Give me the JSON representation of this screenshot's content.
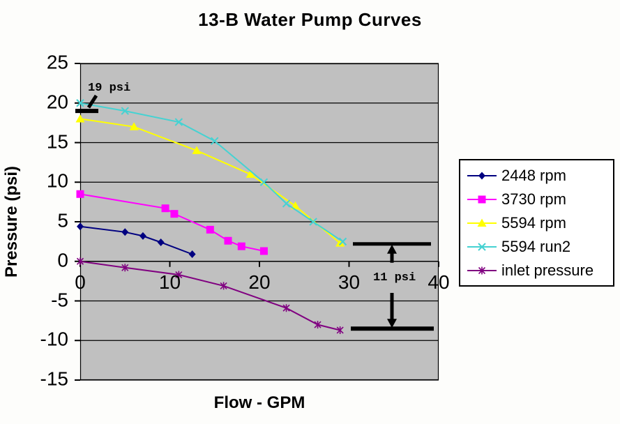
{
  "title": "13-B Water Pump Curves",
  "chart_data": {
    "type": "line",
    "title": "13-B Water Pump Curves",
    "xlabel": "Flow - GPM",
    "ylabel": "Pressure (psi)",
    "xlim": [
      0,
      40
    ],
    "ylim": [
      -15,
      25
    ],
    "x_ticks": [
      0,
      10,
      20,
      30,
      40
    ],
    "y_ticks": [
      25,
      20,
      15,
      10,
      5,
      0,
      -5,
      -10,
      -15
    ],
    "grid": "horizontal-black",
    "plot_background": "#C0C0C0",
    "legend_position": "right",
    "series": [
      {
        "name": "2448 rpm",
        "color": "#000080",
        "marker": "diamond",
        "points": [
          [
            0,
            4.4
          ],
          [
            5,
            3.7
          ],
          [
            7,
            3.2
          ],
          [
            9,
            2.4
          ],
          [
            12.5,
            0.9
          ]
        ]
      },
      {
        "name": "3730 rpm",
        "color": "#FF00FF",
        "marker": "square",
        "points": [
          [
            0,
            8.5
          ],
          [
            9.5,
            6.7
          ],
          [
            10.5,
            6.0
          ],
          [
            14.5,
            4.0
          ],
          [
            16.5,
            2.6
          ],
          [
            18,
            1.9
          ],
          [
            20.5,
            1.3
          ]
        ]
      },
      {
        "name": "5594 rpm",
        "color": "#FFFF00",
        "marker": "triangle",
        "points": [
          [
            0,
            18
          ],
          [
            6,
            17
          ],
          [
            13,
            14
          ],
          [
            19,
            11
          ],
          [
            24,
            7
          ],
          [
            29,
            2.3
          ]
        ]
      },
      {
        "name": "5594 run2",
        "color": "#45D2D2",
        "marker": "x",
        "points": [
          [
            0,
            20
          ],
          [
            5,
            19
          ],
          [
            11,
            17.6
          ],
          [
            15,
            15.2
          ],
          [
            20.5,
            10
          ],
          [
            23,
            7.3
          ],
          [
            26,
            5
          ],
          [
            29.3,
            2.5
          ]
        ]
      },
      {
        "name": "inlet pressure",
        "color": "#800080",
        "marker": "asterisk",
        "points": [
          [
            0,
            0
          ],
          [
            5,
            -0.8
          ],
          [
            11,
            -1.7
          ],
          [
            16,
            -3.1
          ],
          [
            23,
            -5.9
          ],
          [
            26.5,
            -8
          ],
          [
            29,
            -8.7
          ]
        ]
      }
    ],
    "annotations": [
      {
        "id": "psi19",
        "text": "19 psi",
        "marks_pressure_psi": 19
      },
      {
        "id": "psi11",
        "text": "11 psi",
        "marks_pressure_span_psi": [
          2.2,
          -8.5
        ]
      }
    ]
  }
}
